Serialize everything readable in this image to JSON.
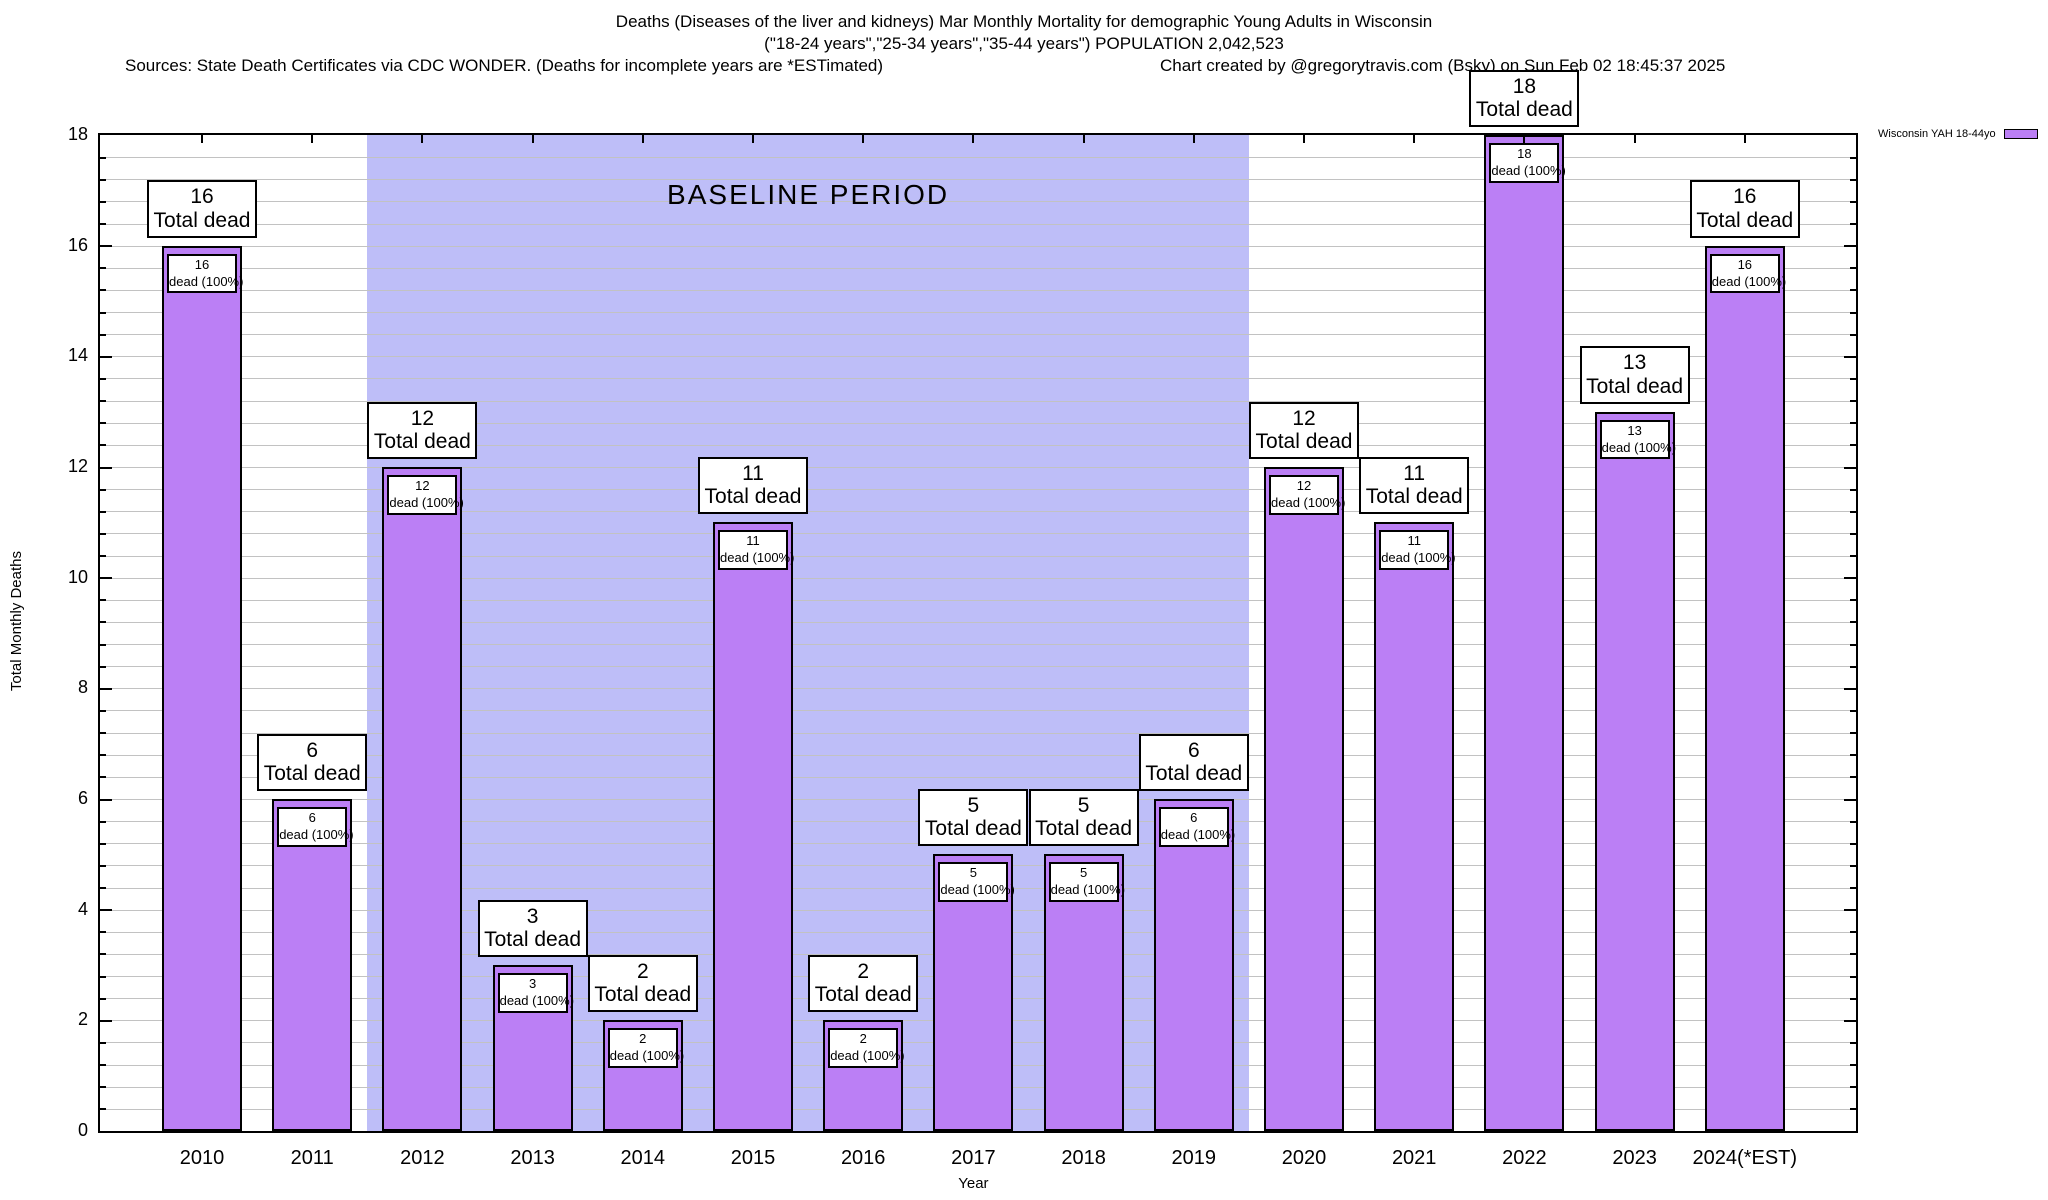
{
  "header": {
    "title_line1": "Deaths (Diseases of the liver and kidneys) Mar Monthly Mortality for demographic Young Adults in Wisconsin",
    "title_line2": "(\"18-24 years\",\"25-34 years\",\"35-44 years\") POPULATION 2,042,523",
    "sources": "Sources: State Death Certificates via CDC WONDER. (Deaths for incomplete years are *ESTimated)",
    "credit": "Chart created by @gregorytravis.com (Bsky) on Sun Feb 02 18:45:37 2025"
  },
  "legend": {
    "label": "Wisconsin YAH 18-44yo"
  },
  "chart_data": {
    "type": "bar",
    "title": "Deaths (Diseases of the liver and kidneys) Mar Monthly Mortality for demographic Young Adults in Wisconsin",
    "subtitle": "(\"18-24 years\",\"25-34 years\",\"35-44 years\") POPULATION 2,042,523",
    "xlabel": "Year",
    "ylabel": "Total Monthly Deaths",
    "ylim": [
      0,
      18
    ],
    "ytick_step": 2,
    "minor_grid_step": 0.4,
    "grid": true,
    "legend_position": "top-right-outside",
    "categories": [
      "2010",
      "2011",
      "2012",
      "2013",
      "2014",
      "2015",
      "2016",
      "2017",
      "2018",
      "2019",
      "2020",
      "2021",
      "2022",
      "2023",
      "2024(*EST)"
    ],
    "series": [
      {
        "name": "Wisconsin YAH 18-44yo",
        "values": [
          16,
          6,
          12,
          3,
          2,
          11,
          2,
          5,
          5,
          6,
          12,
          11,
          18,
          13,
          16
        ]
      }
    ],
    "bar_labels": {
      "top_line2": "Total dead",
      "inner_line2": "dead (100%)"
    },
    "baseline_band": {
      "text": "BASELINE PERIOD",
      "from_category": "2012",
      "to_category": "2019"
    },
    "colors": {
      "bar": "#bb7ff5",
      "band": "#bebef8",
      "grid": "#c2c2c2",
      "border": "#000000"
    }
  }
}
